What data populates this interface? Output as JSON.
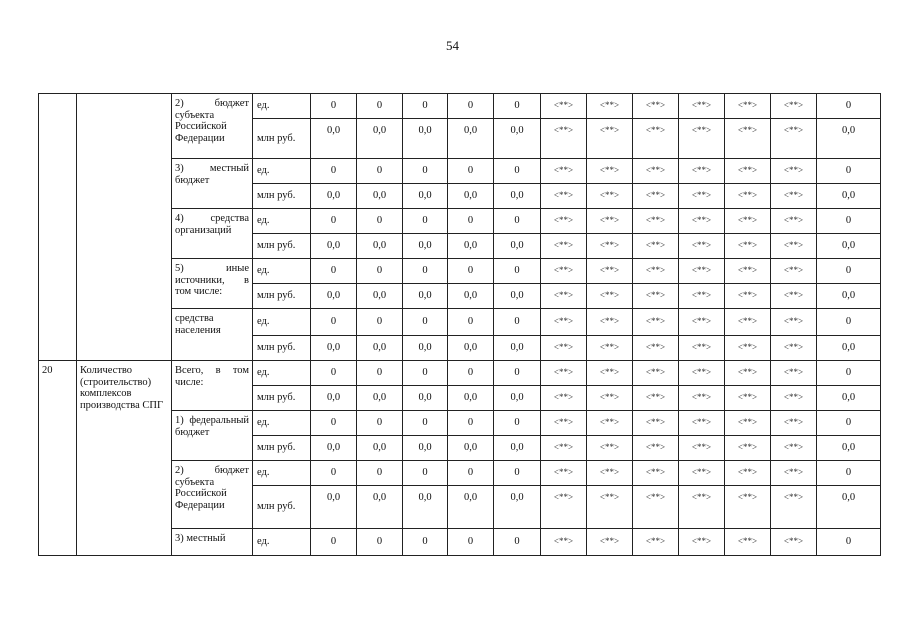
{
  "page_number": "54",
  "units": {
    "count": "ед.",
    "money": "млн руб."
  },
  "sections": [
    {
      "number": "",
      "name": "",
      "groups": [
        {
          "label": "2) бюджет субъекта Российской Федерации",
          "rows": [
            [
              "0",
              "0",
              "0",
              "0",
              "0",
              "<**>",
              "<**>",
              "<**>",
              "<**>",
              "<**>",
              "<**>",
              "0"
            ],
            [
              "0,0",
              "0,0",
              "0,0",
              "0,0",
              "0,0",
              "<**>",
              "<**>",
              "<**>",
              "<**>",
              "<**>",
              "<**>",
              "0,0"
            ]
          ]
        },
        {
          "label": "3) местный бюджет",
          "rows": [
            [
              "0",
              "0",
              "0",
              "0",
              "0",
              "<**>",
              "<**>",
              "<**>",
              "<**>",
              "<**>",
              "<**>",
              "0"
            ],
            [
              "0,0",
              "0,0",
              "0,0",
              "0,0",
              "0,0",
              "<**>",
              "<**>",
              "<**>",
              "<**>",
              "<**>",
              "<**>",
              "0,0"
            ]
          ]
        },
        {
          "label": "4) средства организаций",
          "rows": [
            [
              "0",
              "0",
              "0",
              "0",
              "0",
              "<**>",
              "<**>",
              "<**>",
              "<**>",
              "<**>",
              "<**>",
              "0"
            ],
            [
              "0,0",
              "0,0",
              "0,0",
              "0,0",
              "0,0",
              "<**>",
              "<**>",
              "<**>",
              "<**>",
              "<**>",
              "<**>",
              "0,0"
            ]
          ]
        },
        {
          "label": "5) иные источники, в том числе:",
          "rows": [
            [
              "0",
              "0",
              "0",
              "0",
              "0",
              "<**>",
              "<**>",
              "<**>",
              "<**>",
              "<**>",
              "<**>",
              "0"
            ],
            [
              "0,0",
              "0,0",
              "0,0",
              "0,0",
              "0,0",
              "<**>",
              "<**>",
              "<**>",
              "<**>",
              "<**>",
              "<**>",
              "0,0"
            ]
          ]
        },
        {
          "label": "средства населения",
          "rows": [
            [
              "0",
              "0",
              "0",
              "0",
              "0",
              "<**>",
              "<**>",
              "<**>",
              "<**>",
              "<**>",
              "<**>",
              "0"
            ],
            [
              "0,0",
              "0,0",
              "0,0",
              "0,0",
              "0,0",
              "<**>",
              "<**>",
              "<**>",
              "<**>",
              "<**>",
              "<**>",
              "0,0"
            ]
          ]
        }
      ]
    },
    {
      "number": "20",
      "name": "Количество (строительство) комплексов производства СПГ",
      "groups": [
        {
          "label": "Всего, в том числе:",
          "rows": [
            [
              "0",
              "0",
              "0",
              "0",
              "0",
              "<**>",
              "<**>",
              "<**>",
              "<**>",
              "<**>",
              "<**>",
              "0"
            ],
            [
              "0,0",
              "0,0",
              "0,0",
              "0,0",
              "0,0",
              "<**>",
              "<**>",
              "<**>",
              "<**>",
              "<**>",
              "<**>",
              "0,0"
            ]
          ]
        },
        {
          "label": "1) федеральный бюджет",
          "rows": [
            [
              "0",
              "0",
              "0",
              "0",
              "0",
              "<**>",
              "<**>",
              "<**>",
              "<**>",
              "<**>",
              "<**>",
              "0"
            ],
            [
              "0,0",
              "0,0",
              "0,0",
              "0,0",
              "0,0",
              "<**>",
              "<**>",
              "<**>",
              "<**>",
              "<**>",
              "<**>",
              "0,0"
            ]
          ]
        },
        {
          "label": "2) бюджет субъекта Российской Федерации",
          "rows": [
            [
              "0",
              "0",
              "0",
              "0",
              "0",
              "<**>",
              "<**>",
              "<**>",
              "<**>",
              "<**>",
              "<**>",
              "0"
            ],
            [
              "0,0",
              "0,0",
              "0,0",
              "0,0",
              "0,0",
              "<**>",
              "<**>",
              "<**>",
              "<**>",
              "<**>",
              "<**>",
              "0,0"
            ]
          ]
        },
        {
          "label": "3) местный",
          "rows": [
            [
              "0",
              "0",
              "0",
              "0",
              "0",
              "<**>",
              "<**>",
              "<**>",
              "<**>",
              "<**>",
              "<**>",
              "0"
            ]
          ]
        }
      ]
    }
  ]
}
